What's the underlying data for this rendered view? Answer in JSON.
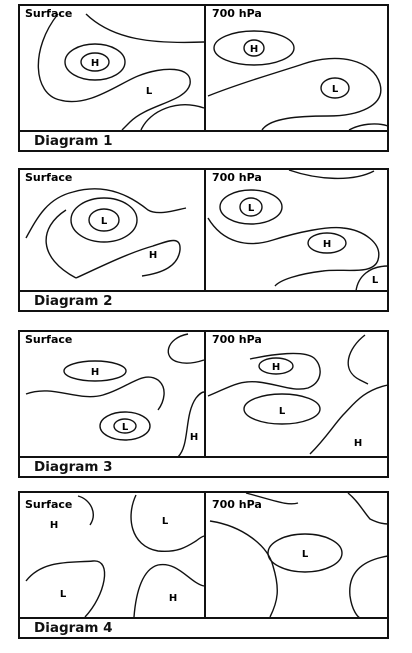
{
  "diagrams": [
    {
      "caption": "Diagram 1",
      "panels": [
        {
          "title": "Surface",
          "labels": [
            "H",
            "L"
          ]
        },
        {
          "title": "700 hPa",
          "labels": [
            "H",
            "L"
          ]
        }
      ]
    },
    {
      "caption": "Diagram 2",
      "panels": [
        {
          "title": "Surface",
          "labels": [
            "L",
            "H"
          ]
        },
        {
          "title": "700 hPa",
          "labels": [
            "L",
            "H",
            "L"
          ]
        }
      ]
    },
    {
      "caption": "Diagram 3",
      "panels": [
        {
          "title": "Surface",
          "labels": [
            "H",
            "L",
            "H"
          ]
        },
        {
          "title": "700 hPa",
          "labels": [
            "H",
            "L",
            "H"
          ]
        }
      ]
    },
    {
      "caption": "Diagram 4",
      "panels": [
        {
          "title": "Surface",
          "labels": [
            "H",
            "L",
            "L",
            "H"
          ]
        },
        {
          "title": "700 hPa",
          "labels": [
            "L"
          ]
        }
      ]
    }
  ]
}
